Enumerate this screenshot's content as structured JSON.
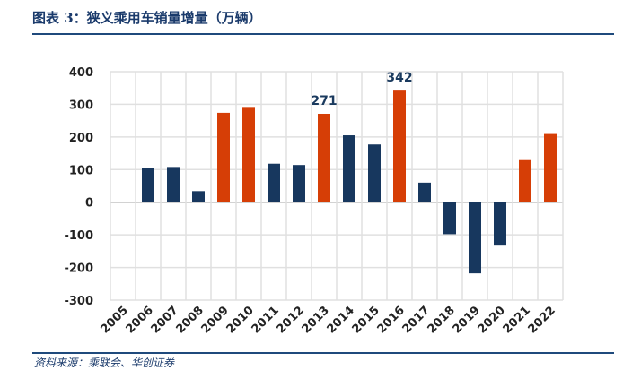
{
  "title": "图表 3：狭义乘用车销量增量（万辆）",
  "source": "资料来源：乘联会、华创证券",
  "chart_data": {
    "type": "bar",
    "title": "狭义乘用车销量增量（万辆）",
    "categories": [
      "2005",
      "2006",
      "2007",
      "2008",
      "2009",
      "2010",
      "2011",
      "2012",
      "2013",
      "2014",
      "2015",
      "2016",
      "2017",
      "2018",
      "2019",
      "2020",
      "2021",
      "2022"
    ],
    "values": [
      0,
      104,
      108,
      34,
      274,
      292,
      118,
      114,
      271,
      205,
      177,
      342,
      60,
      -98,
      -218,
      -133,
      129,
      209
    ],
    "highlight": [
      false,
      false,
      false,
      false,
      true,
      true,
      false,
      false,
      true,
      false,
      false,
      true,
      false,
      false,
      false,
      false,
      true,
      true
    ],
    "data_labels": {
      "2013": "271",
      "2016": "342"
    },
    "ylim": [
      -300,
      400
    ],
    "yticks": [
      400,
      300,
      200,
      100,
      0,
      -100,
      -200,
      -300
    ],
    "grid": true,
    "colors": {
      "normal": "#17375e",
      "highlight": "#d63e06"
    }
  }
}
